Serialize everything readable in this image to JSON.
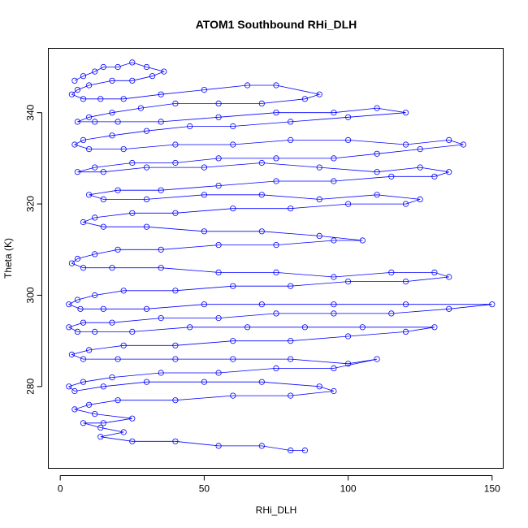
{
  "chart_data": {
    "type": "scatter",
    "title": "ATOM1 Southbound RHi_DLH",
    "xlabel": "RHi_DLH",
    "ylabel": "Theta (K)",
    "xlim": [
      -4,
      154
    ],
    "ylim": [
      262,
      354
    ],
    "xticks": [
      0,
      50,
      100,
      150
    ],
    "yticks": [
      280,
      300,
      320,
      340
    ],
    "grid": false,
    "legend": "none",
    "color": "#0000ff",
    "marker": "open-circle",
    "connected": true,
    "series": [
      {
        "points": [
          [
            5,
            347
          ],
          [
            8,
            348
          ],
          [
            12,
            349
          ],
          [
            15,
            350
          ],
          [
            20,
            350
          ],
          [
            25,
            351
          ],
          [
            30,
            350
          ],
          [
            36,
            349
          ],
          [
            32,
            348
          ],
          [
            25,
            347
          ],
          [
            18,
            347
          ],
          [
            10,
            346
          ],
          [
            6,
            345
          ],
          [
            4,
            344
          ],
          [
            8,
            343
          ],
          [
            14,
            343
          ],
          [
            22,
            343
          ],
          [
            35,
            344
          ],
          [
            50,
            345
          ],
          [
            65,
            346
          ],
          [
            75,
            346
          ],
          [
            90,
            344
          ],
          [
            85,
            343
          ],
          [
            70,
            342
          ],
          [
            55,
            342
          ],
          [
            40,
            342
          ],
          [
            28,
            341
          ],
          [
            18,
            340
          ],
          [
            10,
            339
          ],
          [
            6,
            338
          ],
          [
            12,
            338
          ],
          [
            20,
            338
          ],
          [
            35,
            338
          ],
          [
            55,
            339
          ],
          [
            75,
            340
          ],
          [
            95,
            340
          ],
          [
            110,
            341
          ],
          [
            120,
            340
          ],
          [
            100,
            339
          ],
          [
            80,
            338
          ],
          [
            60,
            337
          ],
          [
            45,
            337
          ],
          [
            30,
            336
          ],
          [
            18,
            335
          ],
          [
            8,
            334
          ],
          [
            5,
            333
          ],
          [
            10,
            332
          ],
          [
            22,
            332
          ],
          [
            40,
            333
          ],
          [
            60,
            333
          ],
          [
            80,
            334
          ],
          [
            100,
            334
          ],
          [
            120,
            333
          ],
          [
            135,
            334
          ],
          [
            140,
            333
          ],
          [
            125,
            332
          ],
          [
            110,
            331
          ],
          [
            95,
            330
          ],
          [
            75,
            330
          ],
          [
            55,
            330
          ],
          [
            40,
            329
          ],
          [
            25,
            329
          ],
          [
            12,
            328
          ],
          [
            6,
            327
          ],
          [
            15,
            327
          ],
          [
            30,
            328
          ],
          [
            50,
            328
          ],
          [
            70,
            329
          ],
          [
            90,
            328
          ],
          [
            110,
            327
          ],
          [
            125,
            328
          ],
          [
            135,
            327
          ],
          [
            130,
            326
          ],
          [
            115,
            326
          ],
          [
            95,
            325
          ],
          [
            75,
            325
          ],
          [
            55,
            324
          ],
          [
            35,
            323
          ],
          [
            20,
            323
          ],
          [
            10,
            322
          ],
          [
            15,
            321
          ],
          [
            30,
            321
          ],
          [
            50,
            322
          ],
          [
            70,
            322
          ],
          [
            90,
            321
          ],
          [
            110,
            322
          ],
          [
            125,
            321
          ],
          [
            120,
            320
          ],
          [
            100,
            320
          ],
          [
            80,
            319
          ],
          [
            60,
            319
          ],
          [
            40,
            318
          ],
          [
            25,
            318
          ],
          [
            12,
            317
          ],
          [
            8,
            316
          ],
          [
            15,
            315
          ],
          [
            30,
            315
          ],
          [
            50,
            314
          ],
          [
            70,
            314
          ],
          [
            90,
            313
          ],
          [
            105,
            312
          ],
          [
            95,
            312
          ],
          [
            75,
            311
          ],
          [
            55,
            311
          ],
          [
            35,
            310
          ],
          [
            20,
            310
          ],
          [
            12,
            309
          ],
          [
            6,
            308
          ],
          [
            4,
            307
          ],
          [
            8,
            306
          ],
          [
            18,
            306
          ],
          [
            35,
            306
          ],
          [
            55,
            305
          ],
          [
            75,
            305
          ],
          [
            95,
            304
          ],
          [
            115,
            305
          ],
          [
            130,
            305
          ],
          [
            135,
            304
          ],
          [
            120,
            303
          ],
          [
            100,
            303
          ],
          [
            80,
            302
          ],
          [
            60,
            302
          ],
          [
            40,
            301
          ],
          [
            22,
            301
          ],
          [
            12,
            300
          ],
          [
            6,
            299
          ],
          [
            3,
            298
          ],
          [
            7,
            297
          ],
          [
            15,
            297
          ],
          [
            30,
            297
          ],
          [
            50,
            298
          ],
          [
            70,
            298
          ],
          [
            95,
            298
          ],
          [
            120,
            298
          ],
          [
            150,
            298
          ],
          [
            135,
            297
          ],
          [
            115,
            296
          ],
          [
            95,
            296
          ],
          [
            75,
            296
          ],
          [
            55,
            295
          ],
          [
            35,
            295
          ],
          [
            18,
            294
          ],
          [
            8,
            294
          ],
          [
            3,
            293
          ],
          [
            6,
            292
          ],
          [
            12,
            292
          ],
          [
            25,
            292
          ],
          [
            45,
            293
          ],
          [
            65,
            293
          ],
          [
            85,
            293
          ],
          [
            105,
            293
          ],
          [
            130,
            293
          ],
          [
            120,
            292
          ],
          [
            100,
            291
          ],
          [
            80,
            290
          ],
          [
            60,
            290
          ],
          [
            40,
            289
          ],
          [
            22,
            289
          ],
          [
            10,
            288
          ],
          [
            4,
            287
          ],
          [
            8,
            286
          ],
          [
            20,
            286
          ],
          [
            40,
            286
          ],
          [
            60,
            286
          ],
          [
            80,
            286
          ],
          [
            100,
            285
          ],
          [
            110,
            286
          ],
          [
            95,
            284
          ],
          [
            75,
            284
          ],
          [
            55,
            283
          ],
          [
            35,
            283
          ],
          [
            18,
            282
          ],
          [
            8,
            281
          ],
          [
            3,
            280
          ],
          [
            5,
            279
          ],
          [
            15,
            280
          ],
          [
            30,
            281
          ],
          [
            50,
            281
          ],
          [
            70,
            281
          ],
          [
            90,
            280
          ],
          [
            95,
            279
          ],
          [
            80,
            278
          ],
          [
            60,
            278
          ],
          [
            40,
            277
          ],
          [
            20,
            277
          ],
          [
            10,
            276
          ],
          [
            5,
            275
          ],
          [
            12,
            274
          ],
          [
            25,
            273
          ],
          [
            15,
            272
          ],
          [
            8,
            272
          ],
          [
            14,
            271
          ],
          [
            22,
            270
          ],
          [
            14,
            269
          ],
          [
            25,
            268
          ],
          [
            40,
            268
          ],
          [
            55,
            267
          ],
          [
            70,
            267
          ],
          [
            80,
            266
          ],
          [
            85,
            266
          ]
        ]
      }
    ]
  }
}
